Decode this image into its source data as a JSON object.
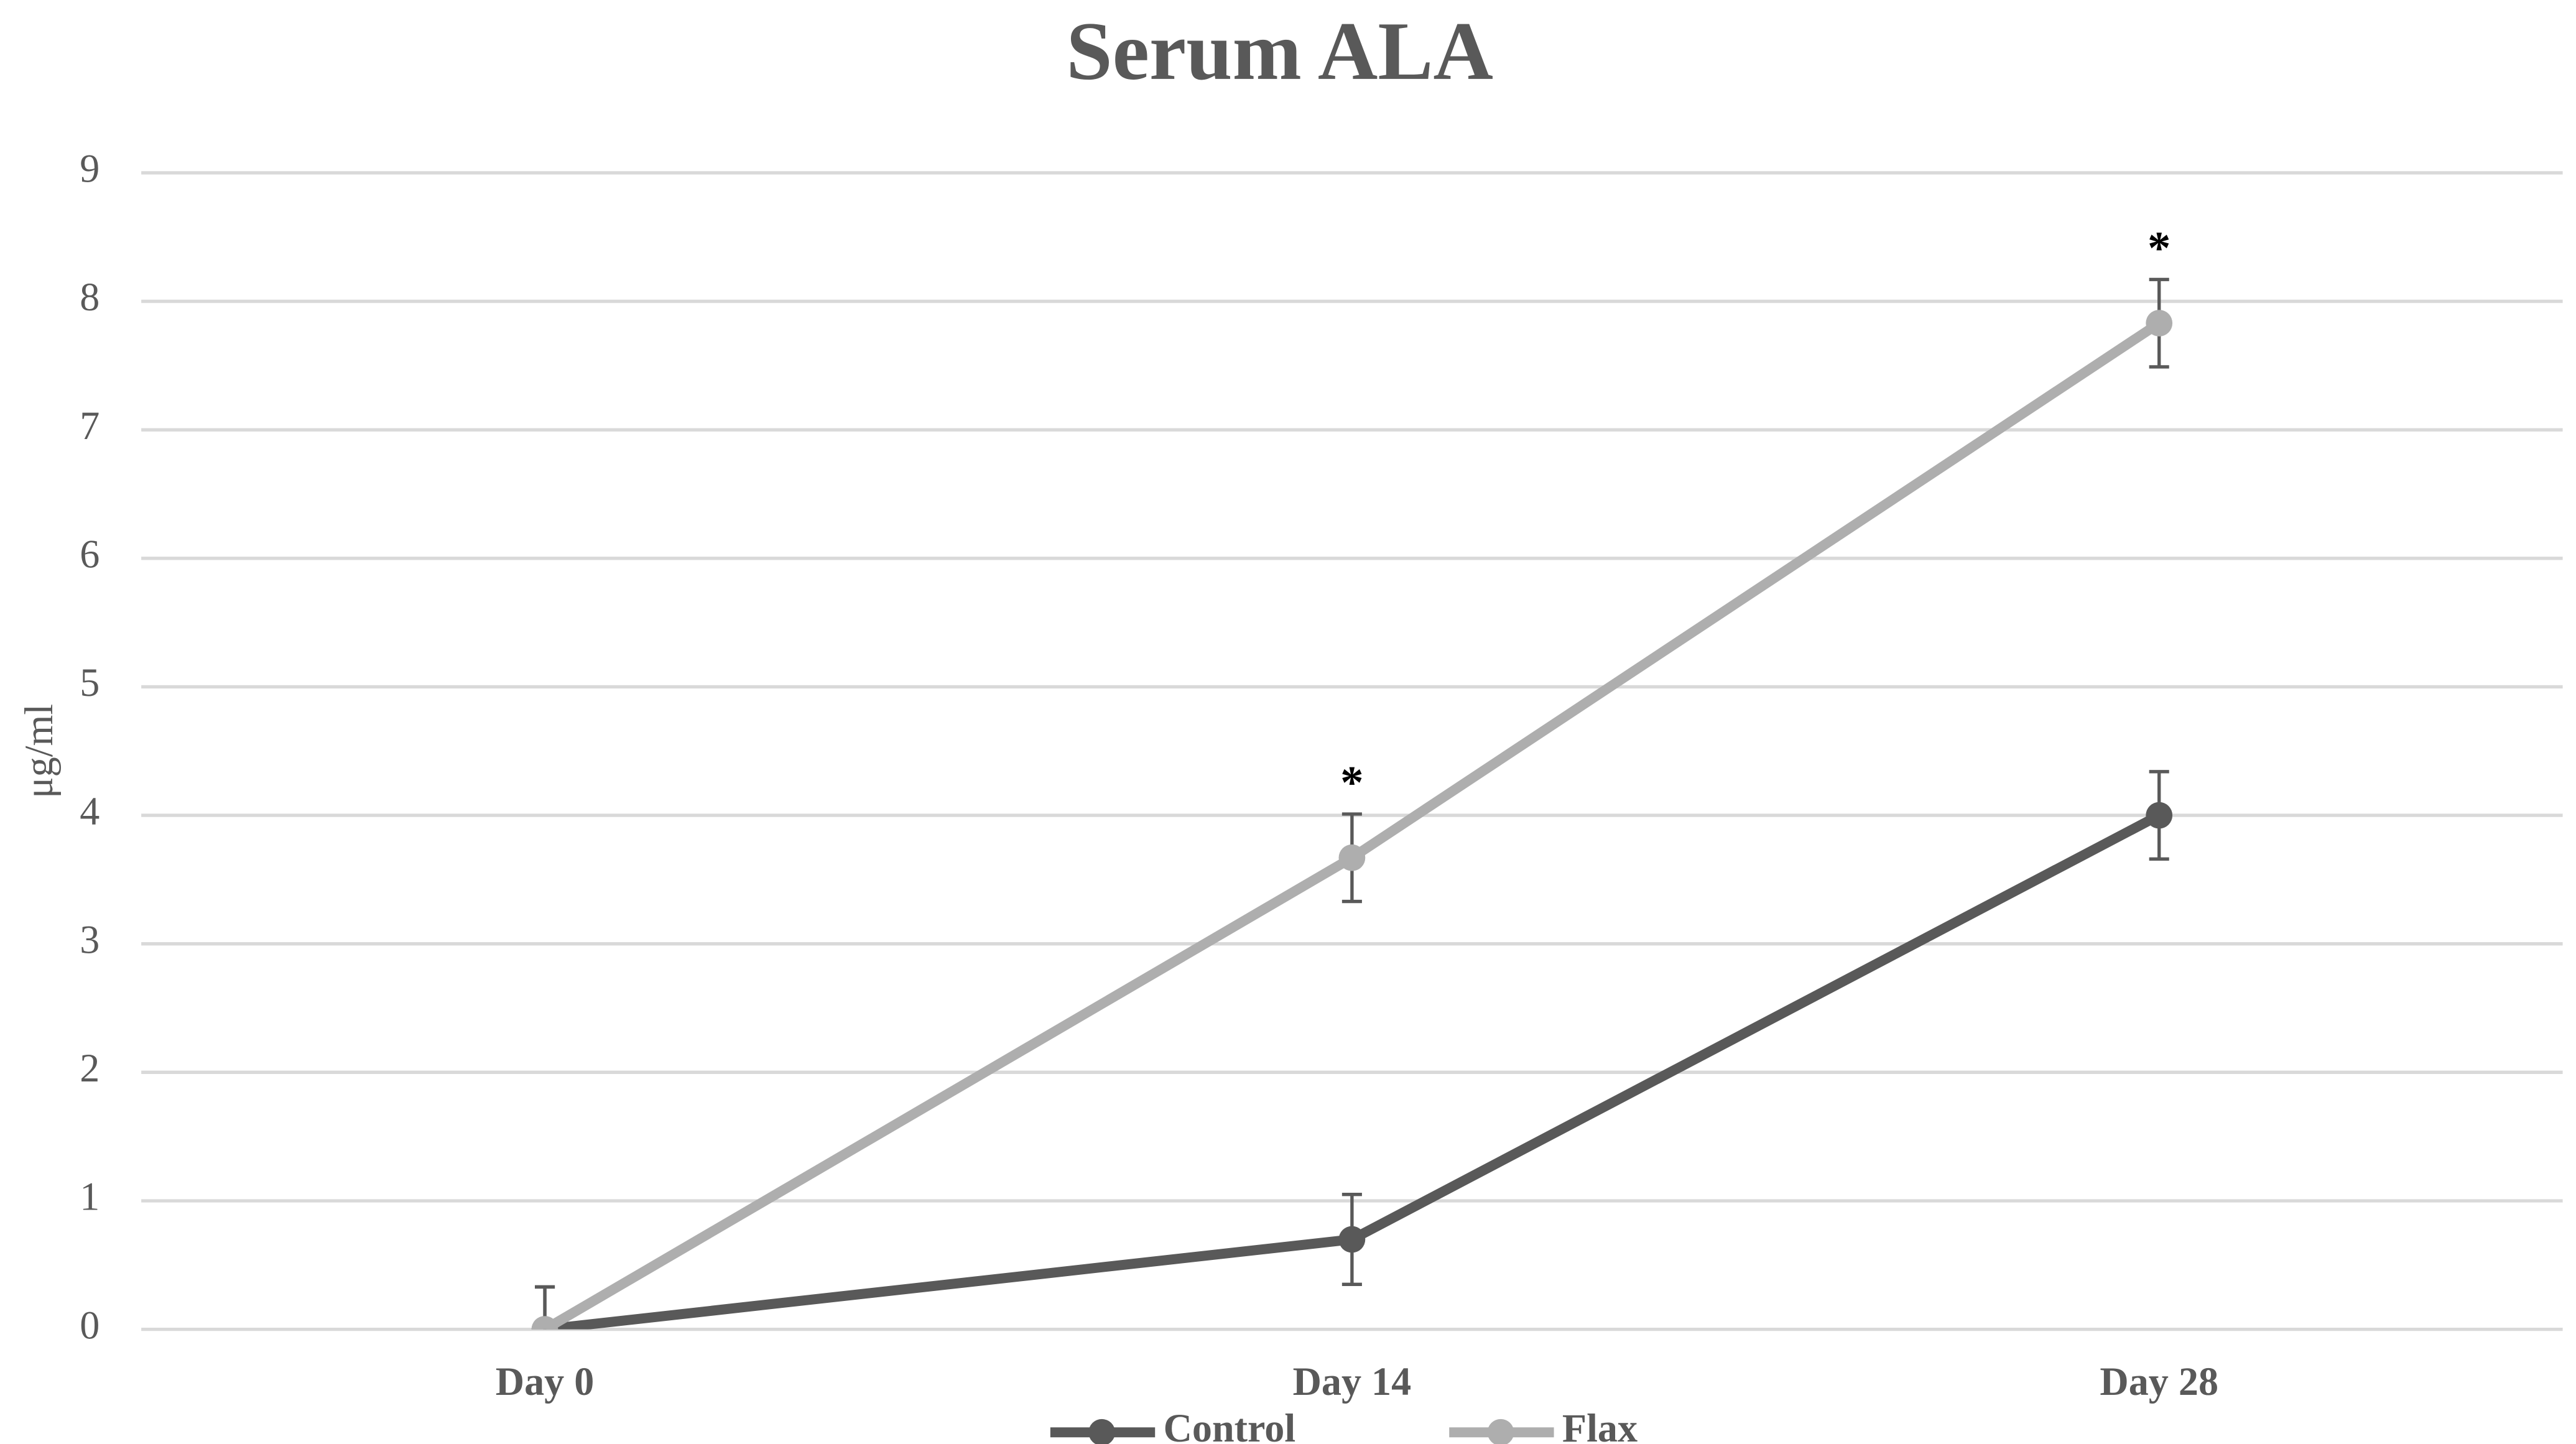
{
  "chart_data": {
    "type": "line",
    "title": "Serum ALA",
    "y_label": "μg/ml",
    "categories": [
      "Day 0",
      "Day 14",
      "Day 28"
    ],
    "series": [
      {
        "name": "Control",
        "color": "#595959",
        "values": [
          0,
          0.7,
          4.0
        ],
        "errors": [
          0.33,
          0.35,
          0.34
        ]
      },
      {
        "name": "Flax",
        "color": "#aeaeae",
        "values": [
          0,
          3.67,
          7.83
        ],
        "errors": [
          0.33,
          0.34,
          0.34
        ]
      }
    ],
    "error_color": "#595959",
    "annotations": [
      {
        "text": "*",
        "x": "Day 14",
        "series": "Flax"
      },
      {
        "text": "*",
        "x": "Day 28",
        "series": "Flax"
      }
    ],
    "ylim": [
      0,
      9
    ],
    "yticks": [
      0,
      1,
      2,
      3,
      4,
      5,
      6,
      7,
      8,
      9
    ],
    "grid": true,
    "legend": "bottom"
  }
}
